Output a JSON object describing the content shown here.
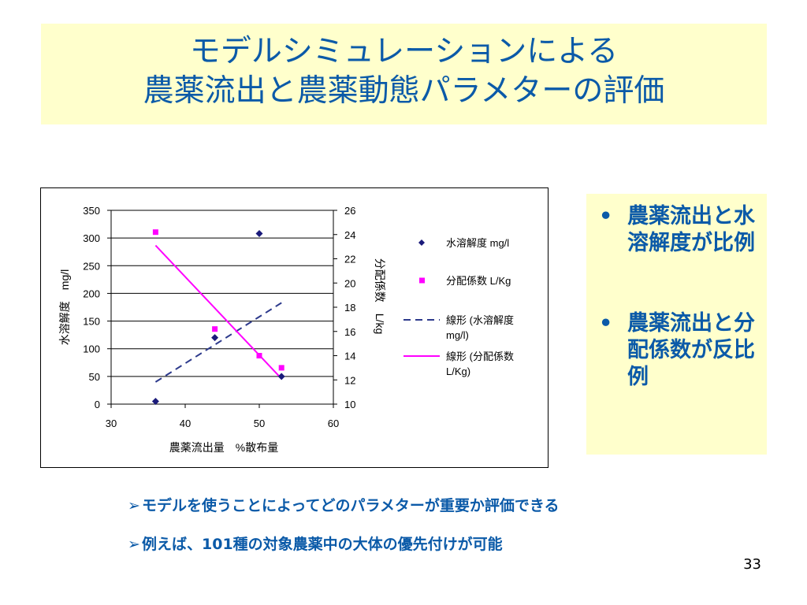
{
  "slide": {
    "title_line1": "モデルシミュレーションによる",
    "title_line2": "農薬流出と農薬動態パラメターの評価",
    "side_points": [
      {
        "bullet": "•",
        "text": "農薬流出と水溶解度が比例"
      },
      {
        "bullet": "•",
        "text": "農薬流出と分配係数が反比例"
      }
    ],
    "bottom_points": [
      {
        "arrow": "➢",
        "text": "モデルを使うことによってどのパラメターが重要か評価できる"
      },
      {
        "arrow": "➢",
        "text": "例えば、101種の対象農薬中の大体の優先付けが可能"
      }
    ],
    "page_number": "33"
  },
  "chart_data": {
    "type": "scatter",
    "title": "",
    "xlabel": "農薬流出量　%散布量",
    "ylabel": "水溶解度　mg/l",
    "y2label": "分配係数　L/kg",
    "xlim": [
      30,
      60
    ],
    "ylim": [
      0,
      350
    ],
    "y2lim": [
      10,
      26
    ],
    "x_ticks": [
      "30",
      "40",
      "50",
      "60"
    ],
    "y_ticks": [
      "0",
      "50",
      "100",
      "150",
      "200",
      "250",
      "300",
      "350"
    ],
    "y2_ticks": [
      "10",
      "12",
      "14",
      "16",
      "18",
      "20",
      "22",
      "24",
      "26"
    ],
    "grid": true,
    "legend_position": "right",
    "series": [
      {
        "name": "水溶解度 mg/l",
        "kind": "points",
        "marker": "diamond",
        "axis": "left",
        "color": "#1a1a7a",
        "x": [
          36,
          44,
          50,
          53
        ],
        "y": [
          5,
          120,
          308,
          50
        ]
      },
      {
        "name": "分配係数 L/Kg",
        "kind": "points",
        "marker": "square",
        "axis": "right",
        "color": "#ff00ff",
        "x": [
          36,
          44,
          50,
          53
        ],
        "y": [
          24.2,
          16.2,
          14.0,
          13.0
        ]
      },
      {
        "name": "線形 (水溶解度 mg/l)",
        "kind": "trend",
        "dash": true,
        "axis": "left",
        "color": "#2d3a8c",
        "x": [
          36,
          53
        ],
        "y": [
          40,
          183
        ]
      },
      {
        "name": "線形 (分配係数 L/Kg)",
        "kind": "trend",
        "dash": false,
        "axis": "right",
        "color": "#ff00ff",
        "x": [
          36,
          53
        ],
        "y": [
          23.1,
          12.1
        ]
      }
    ]
  }
}
